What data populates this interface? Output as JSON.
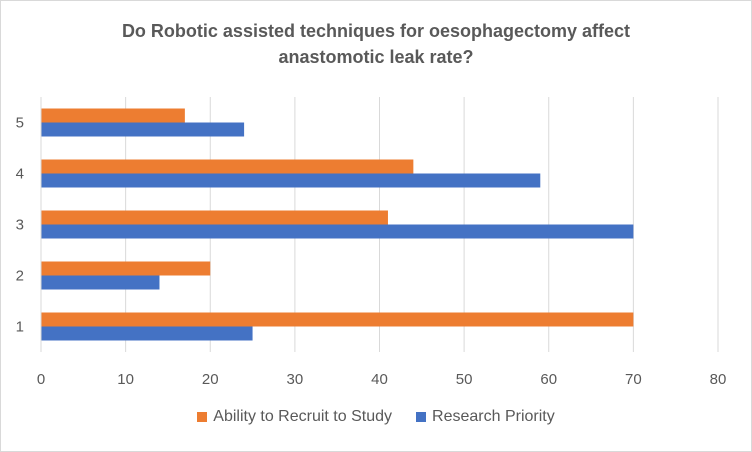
{
  "chart_data": {
    "type": "bar",
    "orientation": "horizontal",
    "title": [
      "Do Robotic assisted techniques for oesophagectomy affect",
      "anastomotic leak rate?"
    ],
    "categories": [
      "1",
      "2",
      "3",
      "4",
      "5"
    ],
    "series": [
      {
        "name": "Research Priority",
        "color": "#4472c4",
        "values": [
          25,
          14,
          70,
          59,
          24
        ]
      },
      {
        "name": "Ability to Recruit to Study",
        "color": "#ed7d31",
        "values": [
          70,
          20,
          41,
          44,
          17
        ]
      }
    ],
    "xlim": [
      0,
      80
    ],
    "xticks": [
      "0",
      "10",
      "20",
      "30",
      "40",
      "50",
      "60",
      "70",
      "80"
    ],
    "grid": "vertical",
    "legend": [
      "Ability to Recruit to Study",
      "Research Priority"
    ],
    "legend_position": "bottom"
  }
}
